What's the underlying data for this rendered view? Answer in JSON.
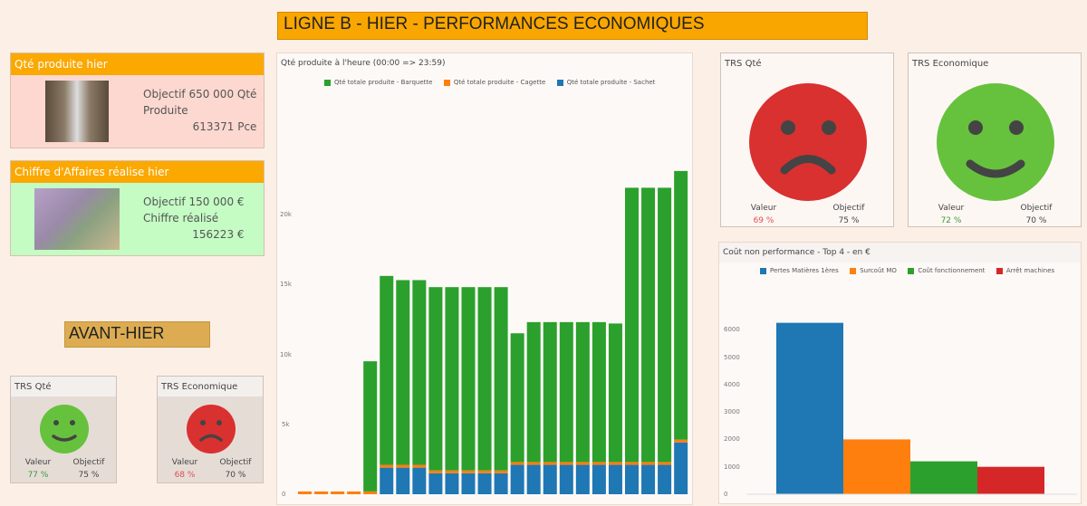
{
  "header": {
    "title": "LIGNE B - HIER - PERFORMANCES ECONOMIQUES"
  },
  "kpi_qty": {
    "title": "Qté produite hier",
    "line1": "Objectif 650 000 Qté",
    "line2": "Produite",
    "value": "613371 Pce",
    "bg": "#fdd8d0"
  },
  "kpi_ca": {
    "title": "Chiffre d'Affaires réalise hier",
    "line1": "Objectif 150 000 €",
    "line2": "Chiffre réalisé",
    "value": "156223 €",
    "bg": "#c4fcc4"
  },
  "avant_hier": {
    "label": "AVANT-HIER",
    "trs_qte": {
      "title": "TRS Qté",
      "valeur_label": "Valeur",
      "objectif_label": "Objectif",
      "valeur": "77 %",
      "objectif": "75 %",
      "mood": "happy"
    },
    "trs_eco": {
      "title": "TRS Economique",
      "valeur_label": "Valeur",
      "objectif_label": "Objectif",
      "valeur": "68 %",
      "objectif": "70 %",
      "mood": "sad"
    }
  },
  "hier": {
    "trs_qte": {
      "title": "TRS Qté",
      "valeur_label": "Valeur",
      "objectif_label": "Objectif",
      "valeur": "69 %",
      "objectif": "75 %",
      "mood": "sad"
    },
    "trs_eco": {
      "title": "TRS Economique",
      "valeur_label": "Valeur",
      "objectif_label": "Objectif",
      "valeur": "72 %",
      "objectif": "70 %",
      "mood": "happy"
    }
  },
  "colors": {
    "happy": "#66c23c",
    "sad": "#d93030",
    "good_text": "#3a9a3a",
    "bad_text": "#e05050"
  },
  "chart_data": [
    {
      "type": "bar",
      "stacked": true,
      "title": "Qté produite à l'heure (00:00 => 23:59)",
      "legend": "top",
      "yticks": [
        "0",
        "5k",
        "10k",
        "15k",
        "20k"
      ],
      "ylim": [
        0,
        24000
      ],
      "series": [
        {
          "name": "Qté totale produite - Sachet",
          "color": "#1f77b4",
          "values": [
            0,
            0,
            0,
            0,
            0,
            1900,
            1900,
            1900,
            1500,
            1500,
            1500,
            1500,
            1500,
            2100,
            2100,
            2100,
            2100,
            2100,
            2100,
            2100,
            2100,
            2100,
            2100,
            3700
          ]
        },
        {
          "name": "Qté totale produite - Cagette",
          "color": "#ff7f0e",
          "values": [
            200,
            200,
            200,
            200,
            200,
            200,
            200,
            200,
            200,
            200,
            200,
            200,
            200,
            200,
            200,
            200,
            200,
            200,
            200,
            200,
            200,
            200,
            200,
            200
          ]
        },
        {
          "name": "Qté totale produite - Barquette",
          "color": "#2ca02c",
          "values": [
            0,
            0,
            0,
            0,
            9300,
            13500,
            13200,
            13200,
            13100,
            13100,
            13100,
            13100,
            13100,
            9200,
            10000,
            10000,
            10000,
            10000,
            10000,
            9900,
            19600,
            19600,
            19600,
            19200
          ]
        }
      ]
    },
    {
      "type": "bar",
      "title": "Coût non performance - Top 4 - en €",
      "legend": "top",
      "yticks": [
        "0",
        "1000",
        "2000",
        "3000",
        "4000",
        "5000",
        "6000"
      ],
      "ylim": [
        0,
        7000
      ],
      "categories": [
        "Pertes Matières 1ères",
        "Surcoût MO",
        "Coût fonctionnement",
        "Arrêt machines"
      ],
      "colors": [
        "#1f77b4",
        "#ff7f0e",
        "#2ca02c",
        "#d62728"
      ],
      "values": [
        6250,
        2000,
        1200,
        1000
      ]
    }
  ]
}
